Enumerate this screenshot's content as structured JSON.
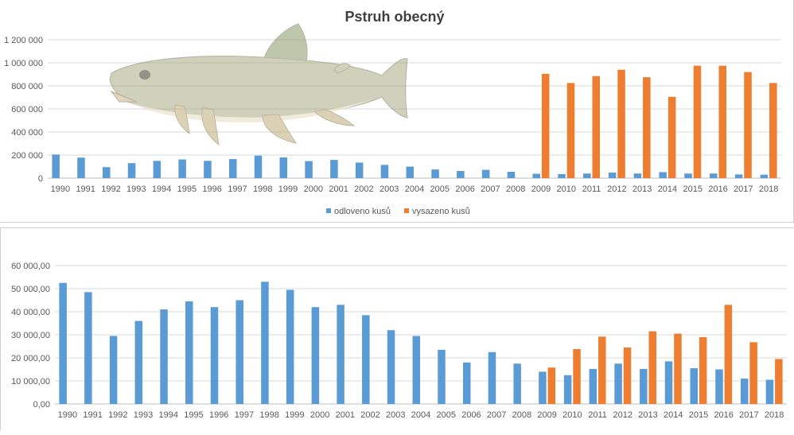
{
  "colors": {
    "odloveno": "#5b9bd5",
    "vysazeno": "#ed7d31",
    "grid": "#d9d9d9",
    "axis": "#bfbfbf"
  },
  "chart_data": [
    {
      "type": "bar",
      "title": "Pstruh obecný",
      "categories": [
        "1990",
        "1991",
        "1992",
        "1993",
        "1994",
        "1995",
        "1996",
        "1997",
        "1998",
        "1999",
        "2000",
        "2001",
        "2002",
        "2003",
        "2004",
        "2005",
        "2006",
        "2007",
        "2008",
        "2009",
        "2010",
        "2011",
        "2012",
        "2013",
        "2014",
        "2015",
        "2016",
        "2017",
        "2018"
      ],
      "series": [
        {
          "name": "odloveno kusů",
          "color": "#5b9bd5",
          "values": [
            205000,
            178000,
            95000,
            130000,
            150000,
            162000,
            150000,
            165000,
            195000,
            180000,
            148000,
            158000,
            135000,
            115000,
            100000,
            75000,
            62000,
            72000,
            55000,
            38000,
            35000,
            40000,
            48000,
            40000,
            52000,
            40000,
            40000,
            32000,
            30000
          ]
        },
        {
          "name": "vysazeno kusů",
          "color": "#ed7d31",
          "values": [
            0,
            0,
            0,
            0,
            0,
            0,
            0,
            0,
            0,
            0,
            0,
            0,
            0,
            0,
            0,
            0,
            0,
            0,
            0,
            905000,
            825000,
            885000,
            940000,
            875000,
            705000,
            975000,
            975000,
            920000,
            825000
          ]
        }
      ],
      "ylim": [
        0,
        1200000
      ],
      "yticks": [
        "0",
        "200 000",
        "400 000",
        "600 000",
        "800 000",
        "1 000 000",
        "1 200 000"
      ],
      "grid": true,
      "legend": "bottom",
      "decoration": "trout-illustration"
    },
    {
      "type": "bar",
      "categories": [
        "1990",
        "1991",
        "1992",
        "1993",
        "1994",
        "1995",
        "1996",
        "1997",
        "1998",
        "1999",
        "2000",
        "2001",
        "2002",
        "2003",
        "2004",
        "2005",
        "2006",
        "2007",
        "2008",
        "2009",
        "2010",
        "2011",
        "2012",
        "2013",
        "2014",
        "2015",
        "2016",
        "2017",
        "2018"
      ],
      "series": [
        {
          "color": "#5b9bd5",
          "values": [
            52500,
            48500,
            29500,
            36000,
            41000,
            44500,
            42000,
            45000,
            53000,
            49500,
            42000,
            43000,
            38500,
            32000,
            29500,
            23500,
            18000,
            22500,
            17500,
            14000,
            12500,
            15200,
            17500,
            15200,
            18500,
            15500,
            15000,
            11000,
            10500
          ]
        },
        {
          "color": "#ed7d31",
          "values": [
            0,
            0,
            0,
            0,
            0,
            0,
            0,
            0,
            0,
            0,
            0,
            0,
            0,
            0,
            0,
            0,
            0,
            0,
            0,
            15800,
            23800,
            29200,
            24500,
            31500,
            30500,
            29000,
            43000,
            26800,
            19500
          ]
        }
      ],
      "ylim": [
        0,
        60000
      ],
      "yticks": [
        "0,00",
        "10 000,00",
        "20 000,00",
        "30 000,00",
        "40 000,00",
        "50 000,00",
        "60 000,00"
      ],
      "grid": true
    }
  ]
}
